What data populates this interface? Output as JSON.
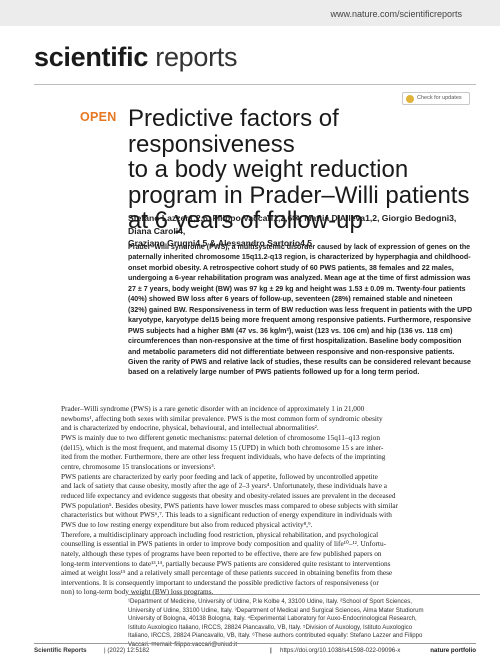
{
  "header": {
    "url": "www.nature.com/scientificreports",
    "journal_bold": "scientific",
    "journal_light": " reports",
    "check_updates": "Check for updates"
  },
  "article": {
    "open_label": "OPEN",
    "title_lines": [
      "Predictive factors of responsiveness",
      "to a body weight reduction",
      "program in Prader–Willi patients",
      "at 6 years of follow-up"
    ],
    "authors_lines": [
      "Stefano Lazzer1,2,6, Filippo Vaccari1,2,6✉, Mattia D'Alleva1,2, Giorgio Bedogni3, Diana Caroli4,",
      "Graziano Grugni4,5 & Alessandro Sartorio4,5"
    ],
    "abstract_lines": [
      "Prader–Willi syndrome (PWS), a multisystemic disorder caused by lack of expression of genes on the",
      "paternally inherited chromosome 15q11.2-q13 region, is characterized by hyperphagia and childhood-",
      "onset morbid obesity. A retrospective cohort study of 60 PWS patients, 38 females and 22 males,",
      "undergoing a 6-year rehabilitation program was analyzed. Mean age at the time of first admission was",
      "27 ± 7 years, body weight (BW) was 97 kg ± 29 kg and height was 1.53 ± 0.09 m. Twenty-four patients",
      "(40%) showed BW loss after 6 years of follow-up, seventeen (28%) remained stable and nineteen",
      "(32%) gained BW. Responsiveness in term of BW reduction was less frequent in patients with the UPD",
      "karyotype, karyotype del15 being more frequent among responsive patients. Furthermore, responsive",
      "PWS subjects had a higher BMI (47 vs. 36 kg/m²), waist (123 vs. 106 cm) and hip (136 vs. 118 cm)",
      "circumferences than non-responsive at the time of first hospitalization. Baseline body composition",
      "and metabolic parameters did not differentiate between responsive and non-responsive patients.",
      "Given the rarity of PWS and relative lack of studies, these results can be considered relevant because",
      "based on a relatively large number of PWS patients followed up for a long term period."
    ],
    "body_lines": [
      "Prader–Willi syndrome (PWS) is a rare genetic disorder with an incidence of approximately 1 in 21,000",
      "newborns¹, affecting both sexes with similar prevalence. PWS is the most common form of syndromic obesity",
      "and is characterized by endocrine, physical, behavioural, and intellectual abnormalities².",
      "    PWS is mainly due to two different genetic mechanisms: paternal deletion of chromosome 15q11–q13 region",
      "(del15), which is the most frequent, and maternal disomy 15 (UPD) in which both chromosome 15 s are inher-",
      "ited from the mother. Furthermore, there are other less frequent individuals, who have defects of the imprinting",
      "centre, chromosome 15 translocations or inversions³.",
      "    PWS patients are characterized by early poor feeding and lack of appetite, followed by uncontrolled appetite",
      "and lack of satiety that cause obesity, mostly after the age of 2–3 years⁴. Unfortunately, these individuals have a",
      "reduced life expectancy and evidence suggests that obesity and obesity-related issues are prevalent in the deceased",
      "PWS population⁵. Besides obesity, PWS patients have lower muscles mass compared to obese subjects with similar",
      "characteristics but without PWS⁶,⁷. This leads to a significant reduction of energy expenditure in individuals with",
      "PWS due to low resting energy expenditure but also from reduced physical activity⁸,⁹.",
      "    Therefore, a multidisciplinary approach including food restriction, physical rehabilitation, and psychological",
      "counselling is essential in PWS patients in order to improve body composition and quality of life¹⁰–¹². Unfortu-",
      "nately, although these types of programs have been reported to be effective, there are few published papers on",
      "long-term interventions to date¹³,¹⁴, partially because PWS patients are considered quite resistant to interventions",
      "aimed at weight loss¹⁵ and a relatively small percentage of these patients succeed in obtaining benefits from these",
      "interventions. It is consequently important to understand the possible predictive factors of responsiveness (or",
      "non) to long-term body weight (BW) loss programs."
    ],
    "footnote_lines": [
      "¹Department of Medicine, University of Udine, P.le Kolbe 4, 33100 Udine, Italy. ²School of Sport Sciences,",
      "University of Udine, 33100 Udine, Italy. ³Department of Medical and Surgical Sciences, Alma Mater Studiorum",
      "University of Bologna, 40138 Bologna, Italy. ⁴Experimental Laboratory for Auxo-Endocrinological Research,",
      "Istituto Auxologico Italiano, IRCCS, 28824 Piancavallo, VB, Italy. ⁵Division of Auxology, Istituto Auxologico",
      "Italiano, IRCCS, 28824 Piancavallo, VB, Italy. ⁶These authors contributed equally: Stefano Lazzer and Filippo",
      "Vaccari. ✉email: filippo.vaccari@uniud.it"
    ]
  },
  "footer": {
    "journal_name": "Scientific Reports",
    "citation": "|        (2022) 12:5182",
    "page_no": "|",
    "doi": "https://doi.org/10.1038/s41598-022-09096-x",
    "portfolio": "nature portfolio"
  }
}
